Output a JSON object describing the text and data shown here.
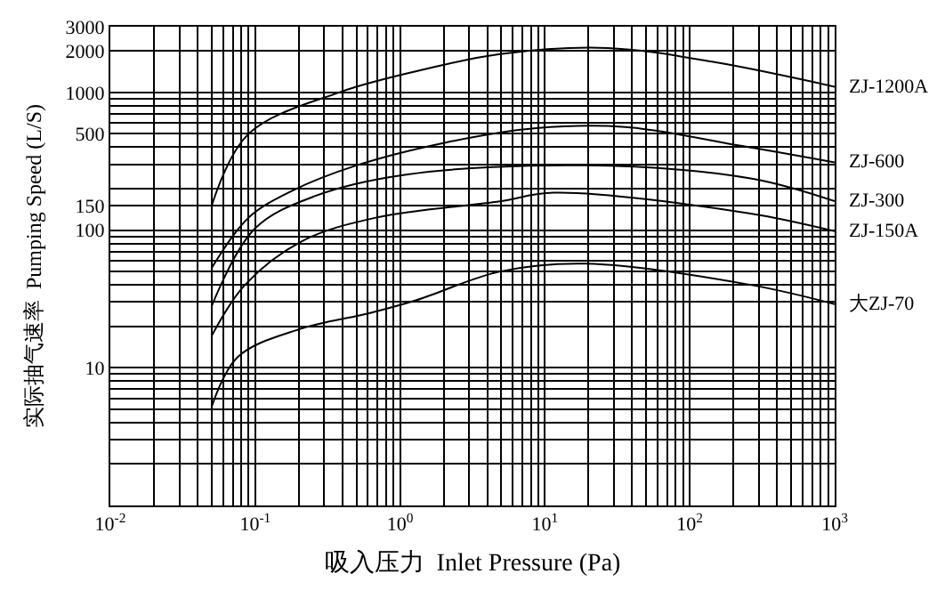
{
  "chart_data": {
    "type": "line",
    "xlabel": "吸入压力  Inlet Pressure (Pa)",
    "ylabel": "实际抽气速率  Pumping Speed (L/S)",
    "log": "xy",
    "grid": true,
    "legend": false,
    "marker": "none",
    "line_style": "solid",
    "xlim": [
      0.01,
      1000
    ],
    "ylim": [
      1,
      3000
    ],
    "xticks": [
      {
        "value": 0.01,
        "label": "10$^{-2}$"
      },
      {
        "value": 0.1,
        "label": "10$^{-1}$"
      },
      {
        "value": 1,
        "label": "10$^{0}$"
      },
      {
        "value": 10,
        "label": "10$^{1}$"
      },
      {
        "value": 100,
        "label": "10$^{2}$"
      },
      {
        "value": 1000,
        "label": "10$^{3}$"
      }
    ],
    "yticks": [
      10,
      100,
      150,
      500,
      1000,
      2000,
      3000
    ],
    "series": [
      {
        "name": "ZJ-1200A",
        "color": "#000000",
        "x": [
          0.05,
          0.09,
          0.38,
          1.6,
          4.9,
          27,
          148,
          1000
        ],
        "values": [
          150,
          500,
          1000,
          1500,
          1900,
          2100,
          1660,
          1100
        ]
      },
      {
        "name": "ZJ-600",
        "color": "#000000",
        "x": [
          0.05,
          0.09,
          0.18,
          0.5,
          2.1,
          8.7,
          36,
          230,
          1000
        ],
        "values": [
          53,
          123,
          193,
          295,
          434,
          550,
          560,
          408,
          310
        ]
      },
      {
        "name": "ZJ-300",
        "color": "#000000",
        "x": [
          0.05,
          0.1,
          0.26,
          1.1,
          19,
          263,
          1000
        ],
        "values": [
          28,
          103,
          177,
          253,
          295,
          237,
          162
        ]
      },
      {
        "name": "ZJ-150A",
        "color": "#000000",
        "x": [
          0.05,
          0.085,
          0.21,
          0.68,
          4.9,
          11.5,
          263,
          1000
        ],
        "values": [
          17,
          40,
          83,
          123,
          162,
          187,
          132,
          98
        ]
      },
      {
        "name": "大ZJ-70",
        "color": "#000000",
        "x": [
          0.05,
          0.076,
          0.2,
          0.62,
          1.3,
          4.9,
          19,
          263,
          1000
        ],
        "values": [
          5.2,
          12,
          19,
          25,
          31,
          50,
          57,
          40,
          29
        ]
      }
    ]
  }
}
